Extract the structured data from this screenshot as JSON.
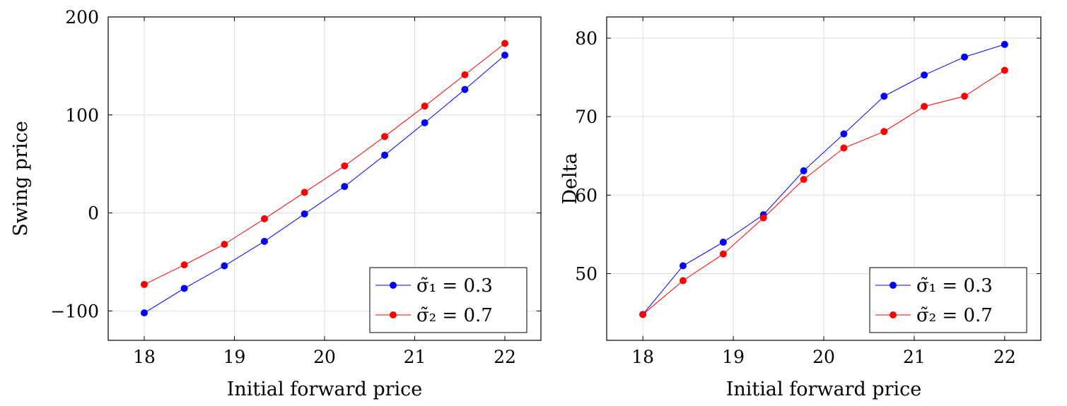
{
  "chart_data": [
    {
      "type": "line",
      "xlabel": "Initial forward price",
      "ylabel": "Swing price",
      "xlim": [
        17.6,
        22.4
      ],
      "ylim": [
        -130,
        200
      ],
      "xticks": [
        18,
        19,
        20,
        21,
        22
      ],
      "xtick_labels": [
        "18",
        "19",
        "20",
        "21",
        "22"
      ],
      "yticks": [
        -100,
        0,
        100,
        200
      ],
      "ytick_labels": [
        "−100",
        "0",
        "100",
        "200"
      ],
      "grid": true,
      "legend": "bottom-right",
      "x": [
        18,
        18.444,
        18.889,
        19.333,
        19.778,
        20.222,
        20.667,
        21.111,
        21.556,
        22
      ],
      "series": [
        {
          "name": "σ̃₁ = 0.3",
          "color": "#0000ff",
          "values": [
            -102,
            -77,
            -54,
            -29,
            -1,
            27,
            59,
            92,
            126,
            161
          ]
        },
        {
          "name": "σ̃₂ = 0.7",
          "color": "#ff0000",
          "values": [
            -73,
            -53,
            -32,
            -6,
            21,
            48,
            78,
            109,
            141,
            173
          ]
        }
      ]
    },
    {
      "type": "line",
      "xlabel": "Initial forward price",
      "ylabel": "Delta",
      "xlim": [
        17.6,
        22.4
      ],
      "ylim": [
        41.5,
        82.7
      ],
      "xticks": [
        18,
        19,
        20,
        21,
        22
      ],
      "xtick_labels": [
        "18",
        "19",
        "20",
        "21",
        "22"
      ],
      "yticks": [
        50,
        60,
        70,
        80
      ],
      "ytick_labels": [
        "50",
        "60",
        "70",
        "80"
      ],
      "grid": true,
      "legend": "bottom-right",
      "x": [
        18,
        18.444,
        18.889,
        19.333,
        19.778,
        20.222,
        20.667,
        21.111,
        21.556,
        22
      ],
      "series": [
        {
          "name": "σ̃₁ = 0.3",
          "color": "#0000ff",
          "values": [
            44.8,
            51.0,
            54.0,
            57.5,
            63.1,
            67.8,
            72.6,
            75.3,
            77.6,
            79.2
          ]
        },
        {
          "name": "σ̃₂ = 0.7",
          "color": "#ff0000",
          "values": [
            44.8,
            49.1,
            52.5,
            57.1,
            62.0,
            66.0,
            68.1,
            71.3,
            72.6,
            75.9
          ]
        }
      ]
    }
  ]
}
